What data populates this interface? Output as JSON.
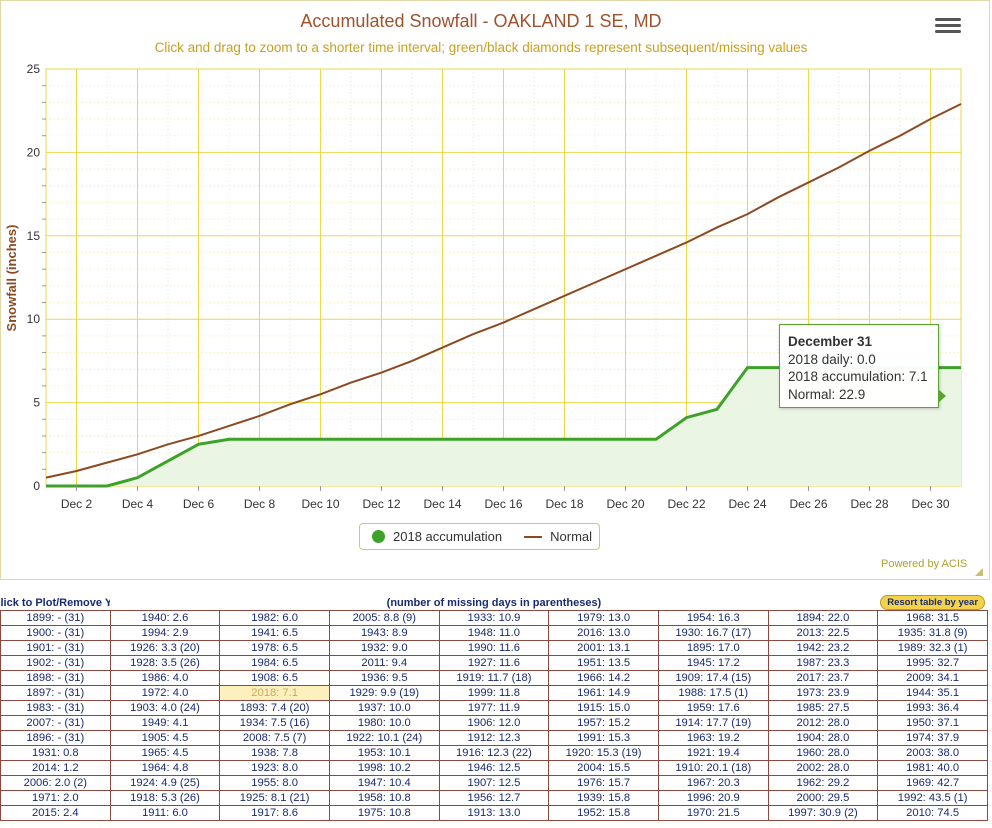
{
  "chart_data": {
    "type": "line",
    "title": "Accumulated Snowfall - OAKLAND 1 SE, MD",
    "subtitle": "Click and drag to zoom to a shorter time interval; green/black diamonds represent subsequent/missing values",
    "ylabel": "Snowfall (inches)",
    "xlabel": "",
    "ylim": [
      0,
      25
    ],
    "xlim": [
      1,
      31
    ],
    "y_ticks": [
      0,
      5,
      10,
      15,
      20,
      25
    ],
    "x_tick_days": [
      2,
      4,
      6,
      8,
      10,
      12,
      14,
      16,
      18,
      20,
      22,
      24,
      26,
      28,
      30
    ],
    "x_tick_labels": [
      "Dec 2",
      "Dec 4",
      "Dec 6",
      "Dec 8",
      "Dec 10",
      "Dec 12",
      "Dec 14",
      "Dec 16",
      "Dec 18",
      "Dec 20",
      "Dec 22",
      "Dec 24",
      "Dec 26",
      "Dec 28",
      "Dec 30"
    ],
    "grid": true,
    "legend_position": "bottom-center",
    "series": [
      {
        "name": "2018 accumulation",
        "color": "#3ea12a",
        "fill": "#eaf5e3",
        "x": [
          1,
          2,
          3,
          4,
          5,
          6,
          7,
          8,
          9,
          10,
          11,
          12,
          13,
          14,
          15,
          16,
          17,
          18,
          19,
          20,
          21,
          22,
          23,
          24,
          25,
          26,
          27,
          28,
          29,
          30,
          31
        ],
        "values": [
          0,
          0,
          0,
          0.5,
          1.5,
          2.5,
          2.8,
          2.8,
          2.8,
          2.8,
          2.8,
          2.8,
          2.8,
          2.8,
          2.8,
          2.8,
          2.8,
          2.8,
          2.8,
          2.8,
          2.8,
          4.1,
          4.6,
          7.1,
          7.1,
          7.1,
          7.1,
          7.1,
          7.1,
          7.1,
          7.1
        ]
      },
      {
        "name": "Normal",
        "color": "#8b4a22",
        "x": [
          1,
          2,
          3,
          4,
          5,
          6,
          7,
          8,
          9,
          10,
          11,
          12,
          13,
          14,
          15,
          16,
          17,
          18,
          19,
          20,
          21,
          22,
          23,
          24,
          25,
          26,
          27,
          28,
          29,
          30,
          31
        ],
        "values": [
          0.5,
          0.9,
          1.4,
          1.9,
          2.5,
          3.0,
          3.6,
          4.2,
          4.9,
          5.5,
          6.2,
          6.8,
          7.5,
          8.3,
          9.1,
          9.8,
          10.6,
          11.4,
          12.2,
          13.0,
          13.8,
          14.6,
          15.5,
          16.3,
          17.3,
          18.2,
          19.1,
          20.1,
          21.0,
          22.0,
          22.9
        ]
      }
    ]
  },
  "tooltip": {
    "title": "December 31",
    "line1": "2018 daily: 0.0",
    "line2": "2018 accumulation: 7.1",
    "line3": "Normal: 22.9"
  },
  "footer": {
    "powered_by": "Powered by ACIS"
  },
  "table": {
    "header_left": "lick to Plot/Remove Years of Interest",
    "header_mid": "(number of missing days in parentheses)",
    "sort_button": "Resort table by year",
    "highlight": "2018: 7.1",
    "rows": [
      [
        "1899: - (31)",
        "1940: 2.6",
        "1982: 6.0",
        "2005: 8.8 (9)",
        "1933: 10.9",
        "1979: 13.0",
        "1954: 16.3",
        "1894: 22.0",
        "1968: 31.5"
      ],
      [
        "1900: - (31)",
        "1994: 2.9",
        "1941: 6.5",
        "1943: 8.9",
        "1948: 11.0",
        "2016: 13.0",
        "1930: 16.7 (17)",
        "2013: 22.5",
        "1935: 31.8 (9)"
      ],
      [
        "1901: - (31)",
        "1926: 3.3 (20)",
        "1978: 6.5",
        "1932: 9.0",
        "1990: 11.6",
        "2001: 13.1",
        "1895: 17.0",
        "1942: 23.2",
        "1989: 32.3 (1)"
      ],
      [
        "1902: - (31)",
        "1928: 3.5 (26)",
        "1984: 6.5",
        "2011: 9.4",
        "1927: 11.6",
        "1951: 13.5",
        "1945: 17.2",
        "1987: 23.3",
        "1995: 32.7"
      ],
      [
        "1898: - (31)",
        "1986: 4.0",
        "1908: 6.5",
        "1936: 9.5",
        "1919: 11.7 (18)",
        "1966: 14.2",
        "1909: 17.4 (15)",
        "2017: 23.7",
        "2009: 34.1"
      ],
      [
        "1897: - (31)",
        "1972: 4.0",
        "2018: 7.1",
        "1929: 9.9 (19)",
        "1999: 11.8",
        "1961: 14.9",
        "1988: 17.5 (1)",
        "1973: 23.9",
        "1944: 35.1"
      ],
      [
        "1983: - (31)",
        "1903: 4.0 (24)",
        "1893: 7.4 (20)",
        "1937: 10.0",
        "1977: 11.9",
        "1915: 15.0",
        "1959: 17.6",
        "1985: 27.5",
        "1993: 36.4"
      ],
      [
        "2007: - (31)",
        "1949: 4.1",
        "1934: 7.5 (16)",
        "1980: 10.0",
        "1906: 12.0",
        "1957: 15.2",
        "1914: 17.7 (19)",
        "2012: 28.0",
        "1950: 37.1"
      ],
      [
        "1896: - (31)",
        "1905: 4.5",
        "2008: 7.5 (7)",
        "1922: 10.1 (24)",
        "1912: 12.3",
        "1991: 15.3",
        "1963: 19.2",
        "1904: 28.0",
        "1974: 37.9"
      ],
      [
        "1931: 0.8",
        "1965: 4.5",
        "1938: 7.8",
        "1953: 10.1",
        "1916: 12.3 (22)",
        "1920: 15.3 (19)",
        "1921: 19.4",
        "1960: 28.0",
        "2003: 38.0"
      ],
      [
        "2014: 1.2",
        "1964: 4.8",
        "1923: 8.0",
        "1998: 10.2",
        "1946: 12.5",
        "2004: 15.5",
        "1910: 20.1 (18)",
        "2002: 28.0",
        "1981: 40.0"
      ],
      [
        "2006: 2.0 (2)",
        "1924: 4.9 (25)",
        "1955: 8.0",
        "1947: 10.4",
        "1907: 12.5",
        "1976: 15.7",
        "1967: 20.3",
        "1962: 29.2",
        "1969: 42.7"
      ],
      [
        "1971: 2.0",
        "1918: 5.3 (26)",
        "1925: 8.1 (21)",
        "1958: 10.8",
        "1956: 12.7",
        "1939: 15.8",
        "1996: 20.9",
        "2000: 29.5",
        "1992: 43.5 (1)"
      ],
      [
        "2015: 2.4",
        "1911: 6.0",
        "1917: 8.6",
        "1975: 10.8",
        "1913: 13.0",
        "1952: 15.8",
        "1970: 21.5",
        "1997: 30.9 (2)",
        "2010: 74.5"
      ]
    ]
  }
}
